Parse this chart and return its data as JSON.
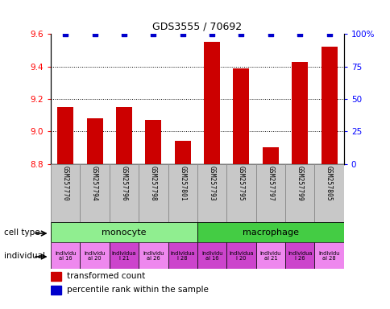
{
  "title": "GDS3555 / 70692",
  "samples": [
    "GSM257770",
    "GSM257794",
    "GSM257796",
    "GSM257798",
    "GSM257801",
    "GSM257793",
    "GSM257795",
    "GSM257797",
    "GSM257799",
    "GSM257805"
  ],
  "bar_values": [
    9.15,
    9.08,
    9.15,
    9.07,
    8.94,
    9.55,
    9.39,
    8.9,
    9.43,
    9.52
  ],
  "dot_values": [
    100,
    100,
    100,
    100,
    100,
    100,
    100,
    100,
    100,
    100
  ],
  "ylim": [
    8.8,
    9.6
  ],
  "y2lim": [
    0,
    100
  ],
  "yticks": [
    8.8,
    9.0,
    9.2,
    9.4,
    9.6
  ],
  "y2ticks": [
    0,
    25,
    50,
    75,
    100
  ],
  "bar_color": "#cc0000",
  "dot_color": "#0000cc",
  "cell_types": [
    {
      "label": "monocyte",
      "start": 0,
      "end": 5,
      "color": "#90ee90"
    },
    {
      "label": "macrophage",
      "start": 5,
      "end": 10,
      "color": "#44cc44"
    }
  ],
  "individuals": [
    {
      "label": "individu\nal 16",
      "start": 0,
      "end": 1,
      "color": "#ee88ee"
    },
    {
      "label": "individu\nal 20",
      "start": 1,
      "end": 2,
      "color": "#ee88ee"
    },
    {
      "label": "individua\nl 21",
      "start": 2,
      "end": 3,
      "color": "#cc44cc"
    },
    {
      "label": "individu\nal 26",
      "start": 3,
      "end": 4,
      "color": "#ee88ee"
    },
    {
      "label": "individua\nl 28",
      "start": 4,
      "end": 5,
      "color": "#cc44cc"
    },
    {
      "label": "individu\nal 16",
      "start": 5,
      "end": 6,
      "color": "#cc44cc"
    },
    {
      "label": "individua\nl 20",
      "start": 6,
      "end": 7,
      "color": "#cc44cc"
    },
    {
      "label": "individu\nal 21",
      "start": 7,
      "end": 8,
      "color": "#ee88ee"
    },
    {
      "label": "individua\nl 26",
      "start": 8,
      "end": 9,
      "color": "#cc44cc"
    },
    {
      "label": "individu\nal 28",
      "start": 9,
      "end": 10,
      "color": "#ee88ee"
    }
  ],
  "legend_bar_label": "transformed count",
  "legend_dot_label": "percentile rank within the sample",
  "cell_type_row_label": "cell type",
  "individual_row_label": "individual",
  "sample_bg_color": "#c8c8c8",
  "sample_border_color": "#888888"
}
